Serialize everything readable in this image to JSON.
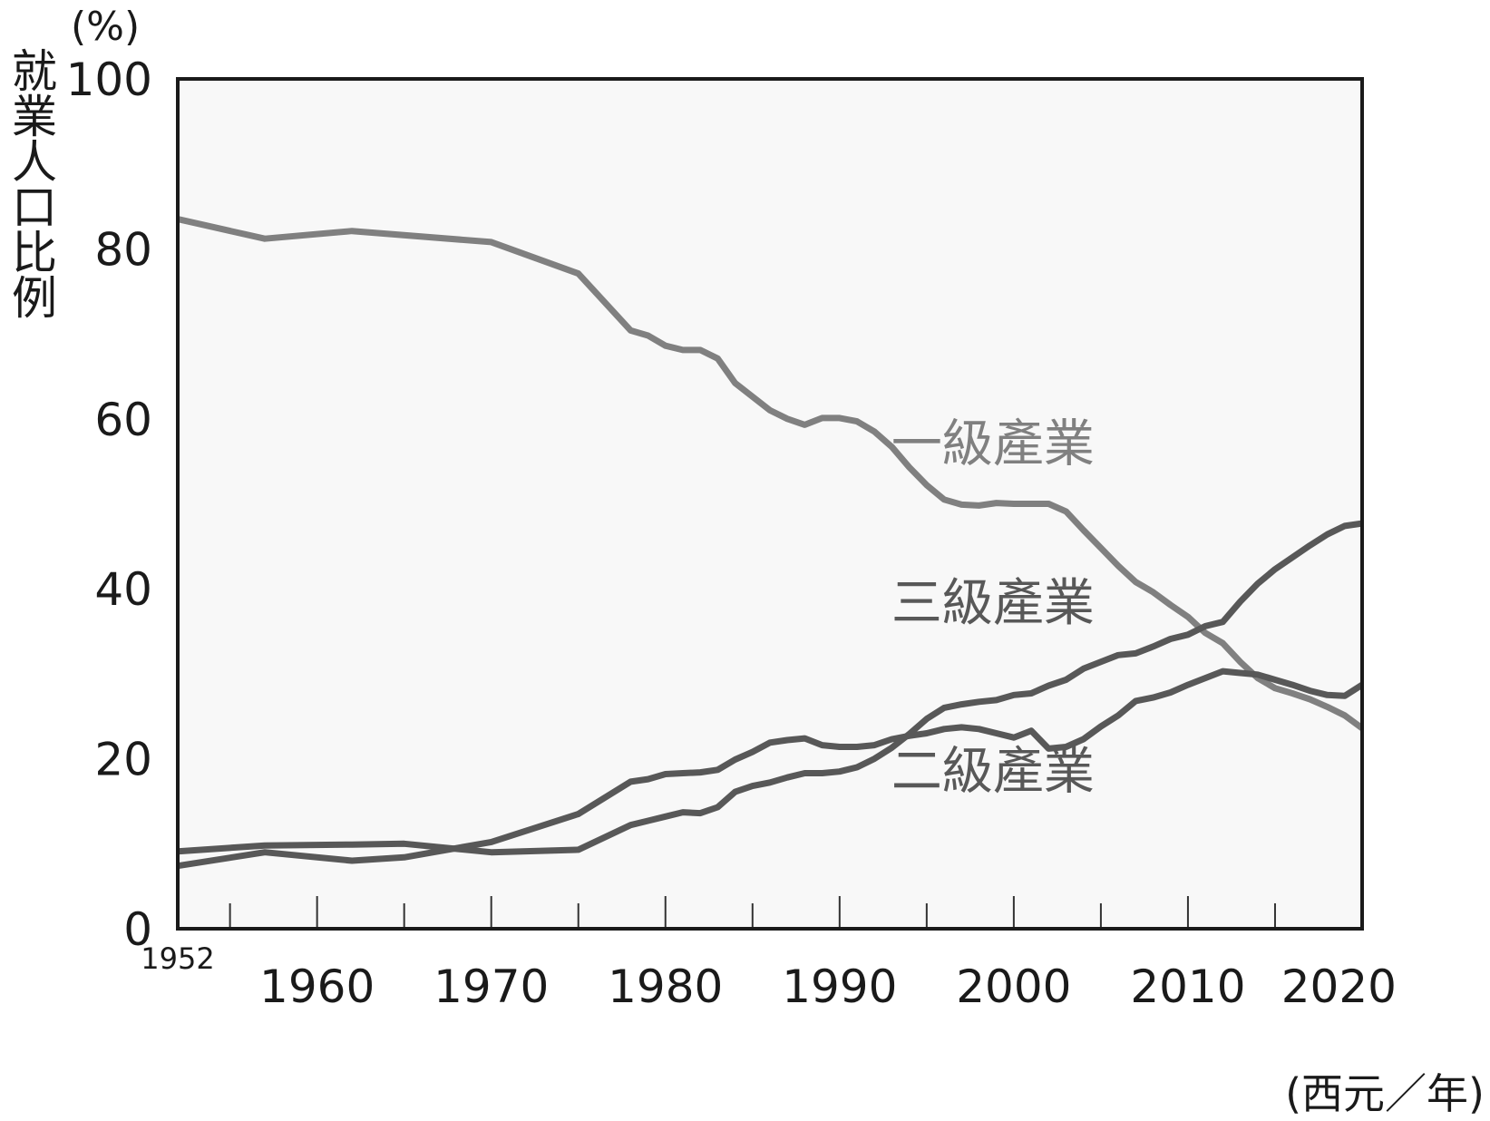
{
  "chart_data": {
    "type": "line",
    "ylabel": "就業人口比例",
    "yunit": "(%)",
    "xunit": "(西元／年)",
    "ylim": [
      0,
      100
    ],
    "xlim": [
      1952,
      2020
    ],
    "yticks": [
      0,
      20,
      40,
      60,
      80,
      100
    ],
    "xticks_labeled": [
      1960,
      1970,
      1980,
      1990,
      2000,
      2010,
      2020
    ],
    "xstart_label": "1952",
    "xminor_ticks": [
      1955,
      1965,
      1975,
      1985,
      1995,
      2005,
      2015
    ],
    "grid": false,
    "background": "#f8f8f8",
    "series": [
      {
        "name": "一級產業",
        "color": "#808080",
        "x": [
          1952,
          1957,
          1962,
          1970,
          1975,
          1978,
          1979,
          1980,
          1981,
          1982,
          1983,
          1984,
          1985,
          1986,
          1987,
          1988,
          1989,
          1990,
          1991,
          1992,
          1993,
          1994,
          1995,
          1996,
          1997,
          1998,
          1999,
          2000,
          2001,
          2002,
          2003,
          2004,
          2005,
          2006,
          2007,
          2008,
          2009,
          2010,
          2011,
          2012,
          2013,
          2014,
          2015,
          2016,
          2017,
          2018,
          2019,
          2020
        ],
        "values": [
          83.5,
          81.2,
          82.1,
          80.8,
          77.1,
          70.4,
          69.8,
          68.6,
          68.1,
          68.1,
          67.1,
          64.2,
          62.6,
          61.0,
          60.0,
          59.3,
          60.1,
          60.1,
          59.7,
          58.5,
          56.7,
          54.3,
          52.2,
          50.5,
          49.9,
          49.8,
          50.1,
          50.0,
          50.0,
          50.0,
          49.1,
          46.9,
          44.8,
          42.7,
          40.8,
          39.6,
          38.1,
          36.7,
          34.8,
          33.6,
          31.4,
          29.5,
          28.3,
          27.7,
          27.0,
          26.1,
          25.1,
          23.6
        ]
      },
      {
        "name": "二級產業",
        "color": "#585858",
        "x": [
          1952,
          1957,
          1962,
          1965,
          1970,
          1975,
          1978,
          1979,
          1980,
          1981,
          1982,
          1983,
          1984,
          1985,
          1986,
          1987,
          1988,
          1989,
          1990,
          1991,
          1992,
          1993,
          1994,
          1995,
          1996,
          1997,
          1998,
          1999,
          2000,
          2001,
          2002,
          2003,
          2004,
          2005,
          2006,
          2007,
          2008,
          2009,
          2010,
          2011,
          2012,
          2013,
          2014,
          2015,
          2016,
          2017,
          2018,
          2019,
          2020
        ],
        "values": [
          7.4,
          9.0,
          8.0,
          8.4,
          10.2,
          13.5,
          17.3,
          17.6,
          18.2,
          18.3,
          18.4,
          18.7,
          19.9,
          20.8,
          21.9,
          22.2,
          22.4,
          21.6,
          21.4,
          21.4,
          21.6,
          22.3,
          22.7,
          23.0,
          23.5,
          23.7,
          23.5,
          23.0,
          22.5,
          23.3,
          21.2,
          21.4,
          22.3,
          23.8,
          25.1,
          26.8,
          27.2,
          27.8,
          28.7,
          29.5,
          30.3,
          30.1,
          29.9,
          29.3,
          28.7,
          28.0,
          27.5,
          27.4,
          28.7
        ]
      },
      {
        "name": "三級產業",
        "color": "#585858",
        "x": [
          1952,
          1957,
          1962,
          1965,
          1970,
          1975,
          1978,
          1979,
          1980,
          1981,
          1982,
          1983,
          1984,
          1985,
          1986,
          1987,
          1988,
          1989,
          1990,
          1991,
          1992,
          1993,
          1994,
          1995,
          1996,
          1997,
          1998,
          1999,
          2000,
          2001,
          2002,
          2003,
          2004,
          2005,
          2006,
          2007,
          2008,
          2009,
          2010,
          2011,
          2012,
          2013,
          2014,
          2015,
          2016,
          2017,
          2018,
          2019,
          2020
        ],
        "values": [
          9.1,
          9.8,
          9.9,
          10.0,
          9.0,
          9.3,
          12.2,
          12.7,
          13.2,
          13.7,
          13.6,
          14.3,
          16.1,
          16.8,
          17.2,
          17.8,
          18.3,
          18.3,
          18.5,
          19.0,
          20.0,
          21.3,
          22.9,
          24.7,
          26.0,
          26.4,
          26.7,
          26.9,
          27.5,
          27.7,
          28.6,
          29.3,
          30.6,
          31.4,
          32.2,
          32.4,
          33.2,
          34.1,
          34.6,
          35.6,
          36.1,
          38.5,
          40.6,
          42.3,
          43.7,
          45.1,
          46.4,
          47.4,
          47.7
        ]
      }
    ]
  }
}
